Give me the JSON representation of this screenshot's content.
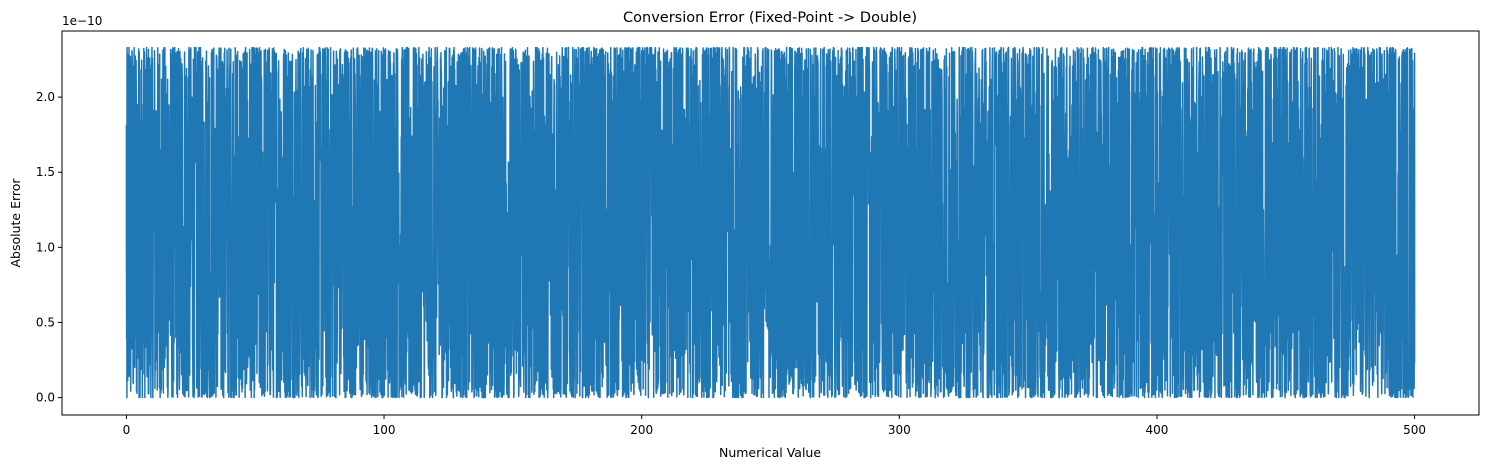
{
  "chart_data": {
    "type": "line",
    "title": "Conversion Error (Fixed-Point -> Double)",
    "xlabel": "Numerical Value",
    "ylabel": "Absolute Error",
    "y_offset_label": "1e−10",
    "y_scale_factor": 1e-10,
    "xlim": [
      -25,
      525
    ],
    "ylim": [
      -0.116,
      2.44
    ],
    "x_ticks": [
      0,
      100,
      200,
      300,
      400,
      500
    ],
    "y_ticks": [
      0.0,
      0.5,
      1.0,
      1.5,
      2.0
    ],
    "x_tick_labels": [
      "0",
      "100",
      "200",
      "300",
      "400",
      "500"
    ],
    "y_tick_labels": [
      "0.0",
      "0.5",
      "1.0",
      "1.5",
      "2.0"
    ],
    "grid": false,
    "legend": "none",
    "series": [
      {
        "color": "#1f77b4",
        "x_range": [
          0,
          500
        ],
        "value_range": [
          0.0,
          2.33
        ],
        "envelope_note_free": true,
        "samples_x": [
          0,
          0.2,
          1,
          5,
          50,
          65,
          100,
          148,
          149,
          150,
          200,
          234,
          299,
          300,
          301,
          302,
          327,
          362,
          363,
          364,
          400,
          450,
          499,
          500
        ],
        "samples_y": [
          1.15,
          0.0,
          2.33,
          2.3,
          0.74,
          0.73,
          2.31,
          0.05,
          1.5,
          2.27,
          2.31,
          2.33,
          1.4,
          0.48,
          0.45,
          0.42,
          1.6,
          0.72,
          2.33,
          0.66,
          2.32,
          2.25,
          1.1,
          0.23
        ]
      }
    ]
  }
}
